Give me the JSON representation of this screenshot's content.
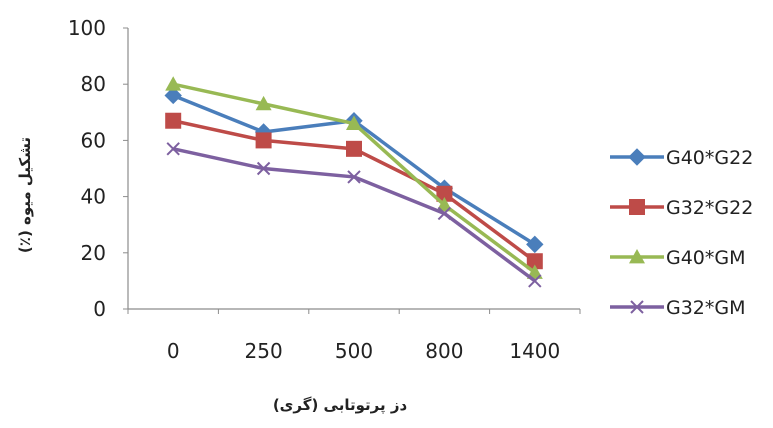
{
  "chart_data": {
    "type": "line",
    "title": "",
    "xlabel": "دز پرتوتابی (گری)",
    "ylabel": "تشکیل میوه (٪)",
    "categories": [
      "0",
      "250",
      "500",
      "800",
      "1400"
    ],
    "ylim": [
      0,
      100
    ],
    "yticks": [
      "0",
      "20",
      "40",
      "60",
      "80",
      "100"
    ],
    "grid": false,
    "legend_position": "right",
    "series": [
      {
        "name": "G40*G22",
        "values": [
          76,
          63,
          67,
          43,
          23
        ],
        "color": "#4a7ebb",
        "marker": "diamond"
      },
      {
        "name": "G32*G22",
        "values": [
          67,
          60,
          57,
          41,
          17
        ],
        "color": "#be4b48",
        "marker": "square"
      },
      {
        "name": "G40*GM",
        "values": [
          80,
          73,
          66,
          37,
          13
        ],
        "color": "#98b954",
        "marker": "triangle"
      },
      {
        "name": "G32*GM",
        "values": [
          57,
          50,
          47,
          34,
          10
        ],
        "color": "#7d60a0",
        "marker": "x"
      }
    ]
  }
}
